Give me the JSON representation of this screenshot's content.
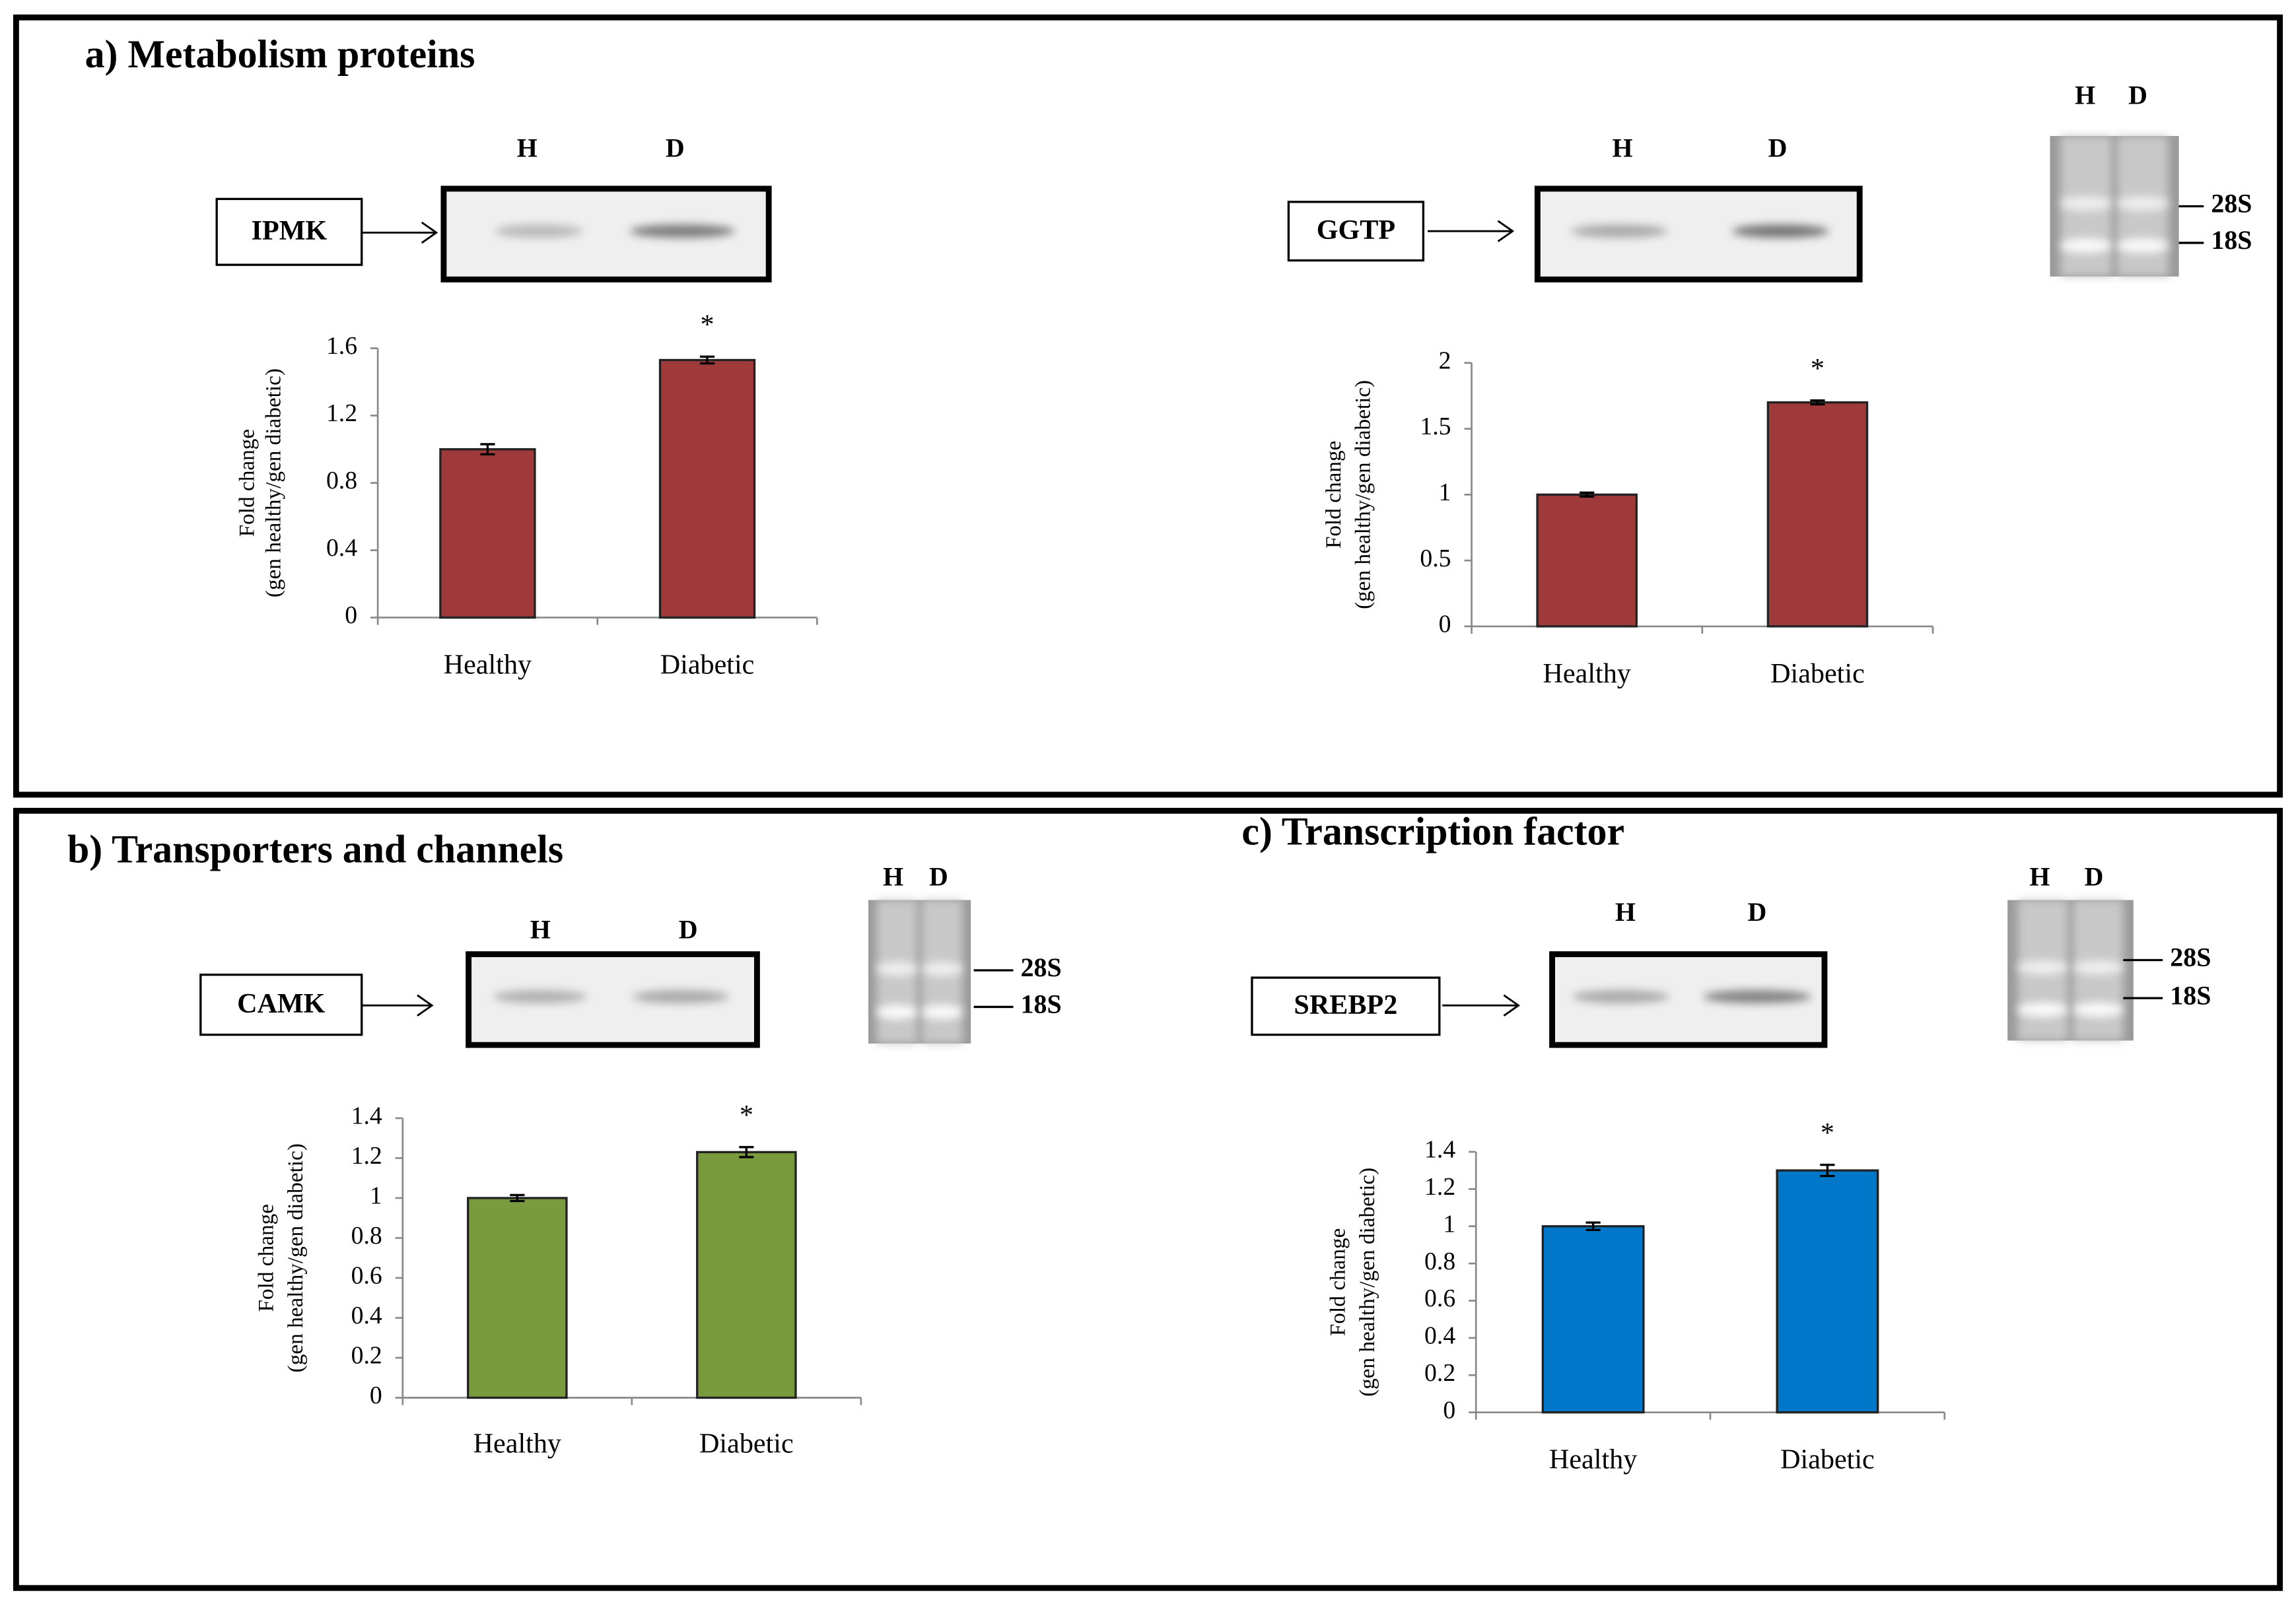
{
  "panels": [
    {
      "title": "a) Metabolism proteins"
    },
    {
      "title": "b) Transporters and channels"
    },
    {
      "title": "c) Transcription factor"
    }
  ],
  "gels": [
    {
      "gene": "IPMK",
      "lanes": [
        "H",
        "D"
      ]
    },
    {
      "gene": "GGTP",
      "lanes": [
        "H",
        "D"
      ]
    },
    {
      "gene": "CAMK",
      "lanes": [
        "H",
        "D"
      ]
    },
    {
      "gene": "SREBP2",
      "lanes": [
        "H",
        "D"
      ]
    }
  ],
  "rna_gels": [
    {
      "lanes": [
        "H",
        "D"
      ],
      "bands": [
        "28S",
        "18S"
      ]
    },
    {
      "lanes": [
        "H",
        "D"
      ],
      "bands": [
        "28S",
        "18S"
      ]
    },
    {
      "lanes": [
        "H",
        "D"
      ],
      "bands": [
        "28S",
        "18S"
      ]
    }
  ],
  "chart_data": [
    {
      "type": "bar",
      "ylabel": [
        "Fold change",
        "(gen healthy/gen diabetic)"
      ],
      "categories": [
        "Healthy",
        "Diabetic"
      ],
      "values": [
        1.0,
        1.53
      ],
      "errors": [
        0.03,
        0.02
      ],
      "color": "#9e3b3a",
      "ylim": [
        0,
        1.6
      ],
      "yticks": [
        0,
        0.4,
        0.8,
        1.2,
        1.6
      ],
      "annotations": [
        {
          "text": "*",
          "category": "Diabetic"
        }
      ]
    },
    {
      "type": "bar",
      "ylabel": [
        "Fold change",
        "(gen healthy/gen diabetic)"
      ],
      "categories": [
        "Healthy",
        "Diabetic"
      ],
      "values": [
        1.0,
        1.7
      ],
      "errors": [
        0.015,
        0.015
      ],
      "color": "#9e3b3a",
      "ylim": [
        0,
        2
      ],
      "yticks": [
        0,
        0.5,
        1,
        1.5,
        2
      ],
      "annotations": [
        {
          "text": "*",
          "category": "Diabetic"
        }
      ]
    },
    {
      "type": "bar",
      "ylabel": [
        "Fold change",
        "(gen healthy/gen diabetic)"
      ],
      "categories": [
        "Healthy",
        "Diabetic"
      ],
      "values": [
        1.0,
        1.23
      ],
      "errors": [
        0.015,
        0.025
      ],
      "color": "#7a9a3e",
      "ylim": [
        0,
        1.4
      ],
      "yticks": [
        0,
        0.2,
        0.4,
        0.6,
        0.8,
        1,
        1.2,
        1.4
      ],
      "annotations": [
        {
          "text": "*",
          "category": "Diabetic"
        }
      ]
    },
    {
      "type": "bar",
      "ylabel": [
        "Fold change",
        "(gen healthy/gen diabetic)"
      ],
      "categories": [
        "Healthy",
        "Diabetic"
      ],
      "values": [
        1.0,
        1.3
      ],
      "errors": [
        0.02,
        0.03
      ],
      "color": "#0077c8",
      "ylim": [
        0,
        1.4
      ],
      "yticks": [
        0,
        0.2,
        0.4,
        0.6,
        0.8,
        1,
        1.2,
        1.4
      ],
      "annotations": [
        {
          "text": "*",
          "category": "Diabetic"
        }
      ]
    }
  ]
}
